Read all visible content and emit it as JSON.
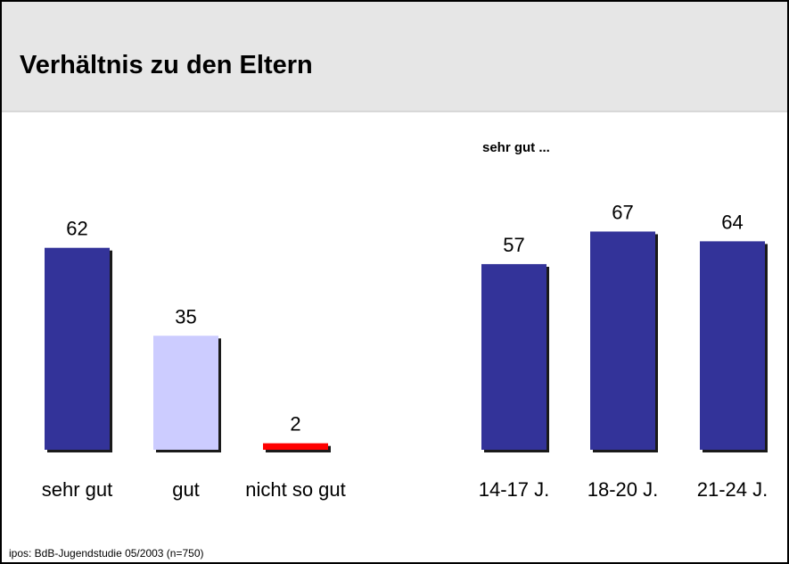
{
  "header": {
    "title": "Verhältnis zu den Eltern"
  },
  "chart_data": [
    {
      "type": "bar",
      "categories": [
        "sehr gut",
        "gut",
        "nicht so gut"
      ],
      "values": [
        62,
        35,
        2
      ],
      "colors": [
        "#333399",
        "#ccccff",
        "#ff0000"
      ],
      "ylim": [
        0,
        100
      ]
    },
    {
      "type": "bar",
      "subtitle": "sehr gut ...",
      "categories": [
        "14-17 J.",
        "18-20 J.",
        "21-24 J."
      ],
      "values": [
        57,
        67,
        64
      ],
      "colors": [
        "#333399",
        "#333399",
        "#333399"
      ],
      "ylim": [
        0,
        100
      ]
    }
  ],
  "footer": {
    "source": "ipos: BdB-Jugendstudie 05/2003 (n=750)"
  }
}
